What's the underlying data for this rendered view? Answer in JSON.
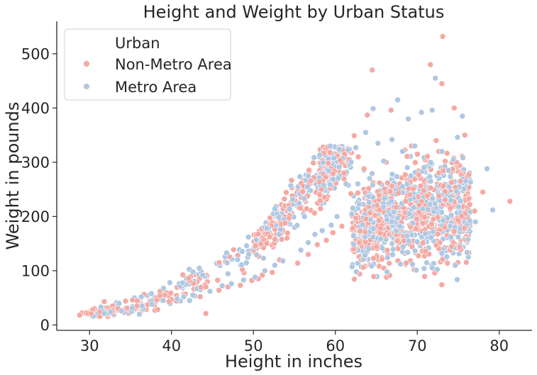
{
  "chart_data": {
    "type": "scatter",
    "title": "Height and Weight by Urban Status",
    "xlabel": "Height in inches",
    "ylabel": "Weight in pounds",
    "xlim": [
      26,
      84
    ],
    "ylim": [
      -10,
      560
    ],
    "xticks": [
      30,
      40,
      50,
      60,
      70,
      80
    ],
    "yticks": [
      0,
      100,
      200,
      300,
      400,
      500
    ],
    "grid": false,
    "legend": {
      "title": "Urban",
      "placement": "top-left",
      "entries": [
        "Non-Metro Area",
        "Metro Area"
      ]
    },
    "series": [
      {
        "name": "Non-Metro Area",
        "color": "#f4a9a3",
        "points": [
          [
            28.8,
            18
          ],
          [
            30.2,
            21
          ],
          [
            31.3,
            24
          ],
          [
            31.8,
            43
          ],
          [
            32.8,
            26
          ],
          [
            33.5,
            30
          ],
          [
            34.6,
            31
          ],
          [
            35.8,
            35
          ],
          [
            37.1,
            37
          ],
          [
            38.2,
            46
          ],
          [
            38.6,
            54
          ],
          [
            39.7,
            43
          ],
          [
            40.6,
            44
          ],
          [
            41.7,
            57
          ],
          [
            42.1,
            86
          ],
          [
            43.5,
            52
          ],
          [
            44.2,
            21
          ],
          [
            45.8,
            64
          ],
          [
            46.9,
            70
          ],
          [
            48.4,
            73
          ],
          [
            49.8,
            82
          ],
          [
            50.6,
            85
          ],
          [
            51.1,
            92
          ],
          [
            52.3,
            97
          ],
          [
            53.2,
            120
          ],
          [
            54.1,
            160
          ],
          [
            54.3,
            220
          ],
          [
            55.4,
            114
          ],
          [
            56.7,
            130
          ],
          [
            57.8,
            148
          ],
          [
            58.3,
            250
          ],
          [
            58.9,
            156
          ],
          [
            59.7,
            170
          ],
          [
            60.8,
            182
          ],
          [
            61.9,
            242
          ],
          [
            62.3,
            349
          ],
          [
            62.8,
            310
          ],
          [
            63.5,
            288
          ],
          [
            63.9,
            387
          ],
          [
            64.5,
            470
          ],
          [
            65.4,
            262
          ],
          [
            66.2,
            300
          ],
          [
            66.8,
            396
          ],
          [
            67.7,
            243
          ],
          [
            68.6,
            228
          ],
          [
            69.1,
            240
          ],
          [
            69.3,
            330
          ],
          [
            70.0,
            315
          ],
          [
            70.4,
            256
          ],
          [
            71.2,
            238
          ],
          [
            71.6,
            480
          ],
          [
            72.3,
            340
          ],
          [
            73.0,
            445
          ],
          [
            73.1,
            532
          ],
          [
            73.4,
            246
          ],
          [
            74.5,
            400
          ],
          [
            74.8,
            300
          ],
          [
            75.3,
            265
          ],
          [
            75.8,
            350
          ],
          [
            76.4,
            222
          ],
          [
            77.0,
            210
          ],
          [
            78.0,
            245
          ],
          [
            81.3,
            228
          ]
        ]
      },
      {
        "name": "Metro Area",
        "color": "#afc8e3",
        "points": [
          [
            31.8,
            21
          ],
          [
            32.6,
            24
          ],
          [
            33.9,
            26
          ],
          [
            35.2,
            31
          ],
          [
            36.4,
            35
          ],
          [
            37.6,
            38
          ],
          [
            39.0,
            45
          ],
          [
            39.8,
            78
          ],
          [
            40.7,
            48
          ],
          [
            41.5,
            52
          ],
          [
            42.6,
            55
          ],
          [
            43.8,
            92
          ],
          [
            44.7,
            62
          ],
          [
            46.2,
            72
          ],
          [
            47.3,
            76
          ],
          [
            48.8,
            83
          ],
          [
            50.2,
            88
          ],
          [
            51.4,
            100
          ],
          [
            52.6,
            110
          ],
          [
            53.6,
            118
          ],
          [
            54.4,
            214
          ],
          [
            55.8,
            138
          ],
          [
            56.7,
            152
          ],
          [
            57.5,
            167
          ],
          [
            58.4,
            174
          ],
          [
            59.5,
            184
          ],
          [
            60.2,
            200
          ],
          [
            61.3,
            260
          ],
          [
            62.5,
            327
          ],
          [
            63.7,
            355
          ],
          [
            64.6,
            399
          ],
          [
            65.2,
            335
          ],
          [
            65.9,
            302
          ],
          [
            66.9,
            342
          ],
          [
            67.6,
            415
          ],
          [
            68.2,
            320
          ],
          [
            68.9,
            380
          ],
          [
            69.7,
            330
          ],
          [
            70.5,
            392
          ],
          [
            70.8,
            290
          ],
          [
            71.8,
            396
          ],
          [
            72.2,
            455
          ],
          [
            73.0,
            320
          ],
          [
            73.8,
            285
          ],
          [
            74.4,
            305
          ],
          [
            74.9,
            346
          ],
          [
            75.5,
            385
          ],
          [
            75.9,
            265
          ],
          [
            76.4,
            192
          ],
          [
            77.1,
            190
          ],
          [
            78.5,
            288
          ],
          [
            79.2,
            212
          ]
        ]
      }
    ]
  }
}
